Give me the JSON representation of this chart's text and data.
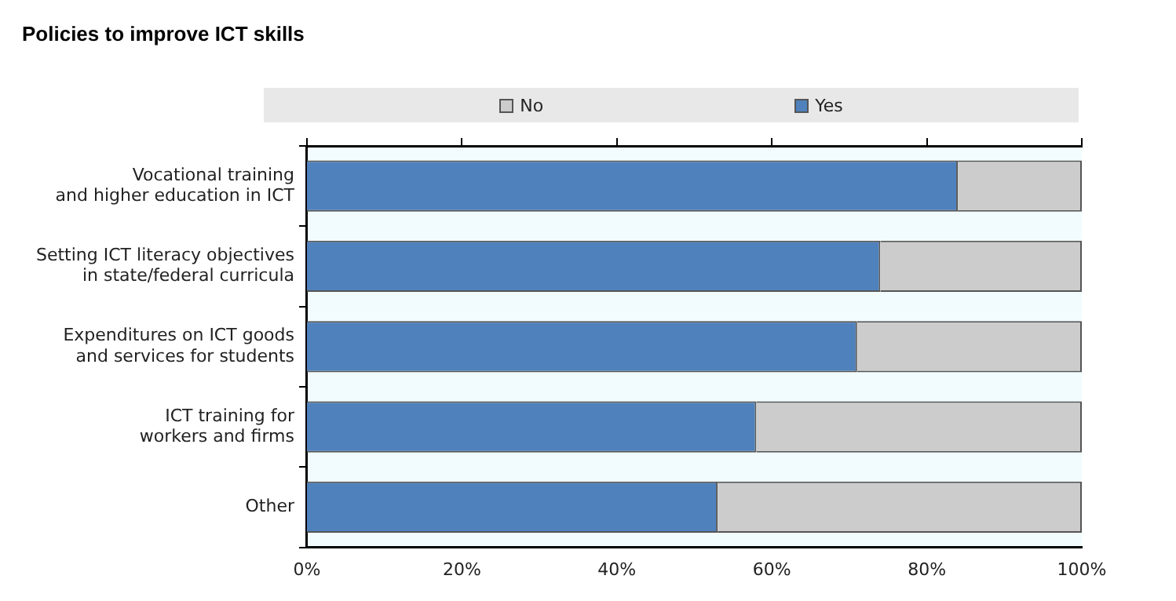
{
  "chart_data": {
    "type": "bar",
    "orientation": "horizontal",
    "stacked": true,
    "title": "Policies to improve ICT skills",
    "categories": [
      "Vocational training\nand higher education in ICT",
      "Setting ICT literacy objectives\nin state/federal curricula",
      "Expenditures on ICT goods\nand services for students",
      "ICT training for\nworkers and firms",
      "Other"
    ],
    "series": [
      {
        "name": "Yes",
        "color": "#4f81bd",
        "values": [
          84,
          74,
          71,
          58,
          53
        ]
      },
      {
        "name": "No",
        "color": "#cccccc",
        "values": [
          16,
          26,
          29,
          42,
          47
        ]
      }
    ],
    "xlim": [
      0,
      100
    ],
    "xticks": [
      {
        "value": 0,
        "label": "0%"
      },
      {
        "value": 20,
        "label": "20%"
      },
      {
        "value": 40,
        "label": "40%"
      },
      {
        "value": 60,
        "label": "60%"
      },
      {
        "value": 80,
        "label": "80%"
      },
      {
        "value": 100,
        "label": "100%"
      }
    ],
    "legend": "top",
    "grid": false
  }
}
